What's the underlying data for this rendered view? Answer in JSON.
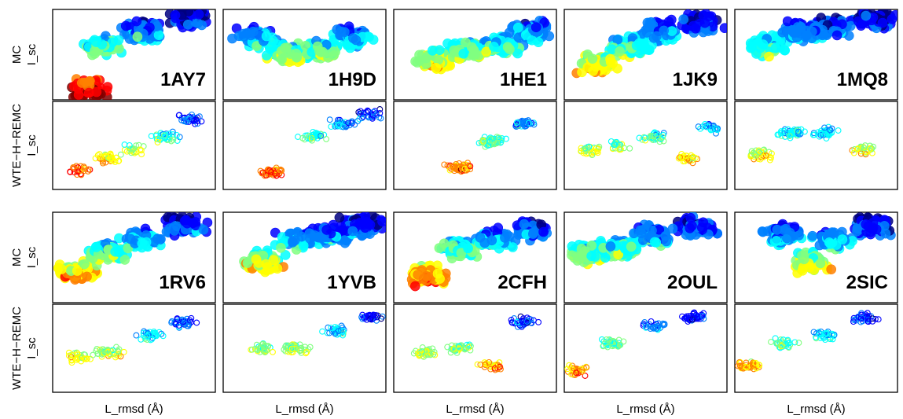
{
  "chart_data": {
    "type": "scatter",
    "title": "",
    "xlabel": "L_rmsd (Å)",
    "ylabel": "I_sc",
    "grid": false,
    "legend": "none",
    "colormap": [
      "#00007f",
      "#0000ff",
      "#0080ff",
      "#00ffff",
      "#80ff80",
      "#ffff00",
      "#ff8000",
      "#ff0000",
      "#7f0000"
    ],
    "method_labels": {
      "mc": "MC",
      "wte": "WTE−H−REMC"
    },
    "axis_label_y": "I_sc",
    "blocks": [
      {
        "complexes": [
          {
            "code": "1AY7",
            "mc": [
              [
                0.22,
                0.12
              ],
              [
                0.3,
                0.6
              ],
              [
                0.55,
                0.75
              ],
              [
                0.85,
                0.9
              ]
            ],
            "wte": [
              [
                0.18,
                0.22
              ],
              [
                0.35,
                0.35
              ],
              [
                0.5,
                0.45
              ],
              [
                0.7,
                0.6
              ],
              [
                0.85,
                0.8
              ]
            ]
          },
          {
            "code": "1H9D",
            "mc": [
              [
                0.2,
                0.7
              ],
              [
                0.4,
                0.5
              ],
              [
                0.6,
                0.55
              ],
              [
                0.8,
                0.7
              ]
            ],
            "wte": [
              [
                0.3,
                0.2
              ],
              [
                0.55,
                0.6
              ],
              [
                0.75,
                0.75
              ],
              [
                0.9,
                0.85
              ]
            ]
          },
          {
            "code": "1HE1",
            "mc": [
              [
                0.25,
                0.45
              ],
              [
                0.45,
                0.55
              ],
              [
                0.65,
                0.6
              ],
              [
                0.85,
                0.75
              ]
            ],
            "wte": [
              [
                0.4,
                0.25
              ],
              [
                0.6,
                0.55
              ],
              [
                0.8,
                0.75
              ]
            ]
          },
          {
            "code": "1JK9",
            "mc": [
              [
                0.2,
                0.4
              ],
              [
                0.4,
                0.6
              ],
              [
                0.6,
                0.75
              ],
              [
                0.85,
                0.85
              ]
            ],
            "wte": [
              [
                0.15,
                0.45
              ],
              [
                0.35,
                0.5
              ],
              [
                0.55,
                0.6
              ],
              [
                0.75,
                0.35
              ],
              [
                0.9,
                0.7
              ]
            ]
          },
          {
            "code": "1MQ8",
            "mc": [
              [
                0.2,
                0.6
              ],
              [
                0.4,
                0.75
              ],
              [
                0.6,
                0.8
              ],
              [
                0.85,
                0.9
              ]
            ],
            "wte": [
              [
                0.15,
                0.4
              ],
              [
                0.35,
                0.65
              ],
              [
                0.55,
                0.65
              ],
              [
                0.8,
                0.45
              ]
            ]
          }
        ]
      },
      {
        "complexes": [
          {
            "code": "1RV6",
            "mc": [
              [
                0.15,
                0.35
              ],
              [
                0.35,
                0.55
              ],
              [
                0.55,
                0.7
              ],
              [
                0.8,
                0.85
              ]
            ],
            "wte": [
              [
                0.15,
                0.4
              ],
              [
                0.35,
                0.45
              ],
              [
                0.6,
                0.65
              ],
              [
                0.8,
                0.8
              ]
            ]
          },
          {
            "code": "1YVB",
            "mc": [
              [
                0.25,
                0.45
              ],
              [
                0.45,
                0.7
              ],
              [
                0.65,
                0.75
              ],
              [
                0.85,
                0.85
              ]
            ],
            "wte": [
              [
                0.25,
                0.5
              ],
              [
                0.45,
                0.5
              ],
              [
                0.7,
                0.7
              ],
              [
                0.9,
                0.85
              ]
            ]
          },
          {
            "code": "2CFH",
            "mc": [
              [
                0.2,
                0.3
              ],
              [
                0.4,
                0.6
              ],
              [
                0.6,
                0.7
              ],
              [
                0.85,
                0.8
              ]
            ],
            "wte": [
              [
                0.2,
                0.45
              ],
              [
                0.4,
                0.5
              ],
              [
                0.6,
                0.3
              ],
              [
                0.8,
                0.8
              ]
            ]
          },
          {
            "code": "2OUL",
            "mc": [
              [
                0.15,
                0.55
              ],
              [
                0.35,
                0.6
              ],
              [
                0.55,
                0.75
              ],
              [
                0.8,
                0.85
              ]
            ],
            "wte": [
              [
                0.08,
                0.25
              ],
              [
                0.3,
                0.55
              ],
              [
                0.55,
                0.75
              ],
              [
                0.8,
                0.85
              ]
            ]
          },
          {
            "code": "2SIC",
            "mc": [
              [
                0.3,
                0.75
              ],
              [
                0.45,
                0.45
              ],
              [
                0.6,
                0.7
              ],
              [
                0.85,
                0.85
              ]
            ],
            "wte": [
              [
                0.08,
                0.3
              ],
              [
                0.3,
                0.55
              ],
              [
                0.55,
                0.65
              ],
              [
                0.8,
                0.85
              ]
            ]
          }
        ]
      }
    ]
  }
}
